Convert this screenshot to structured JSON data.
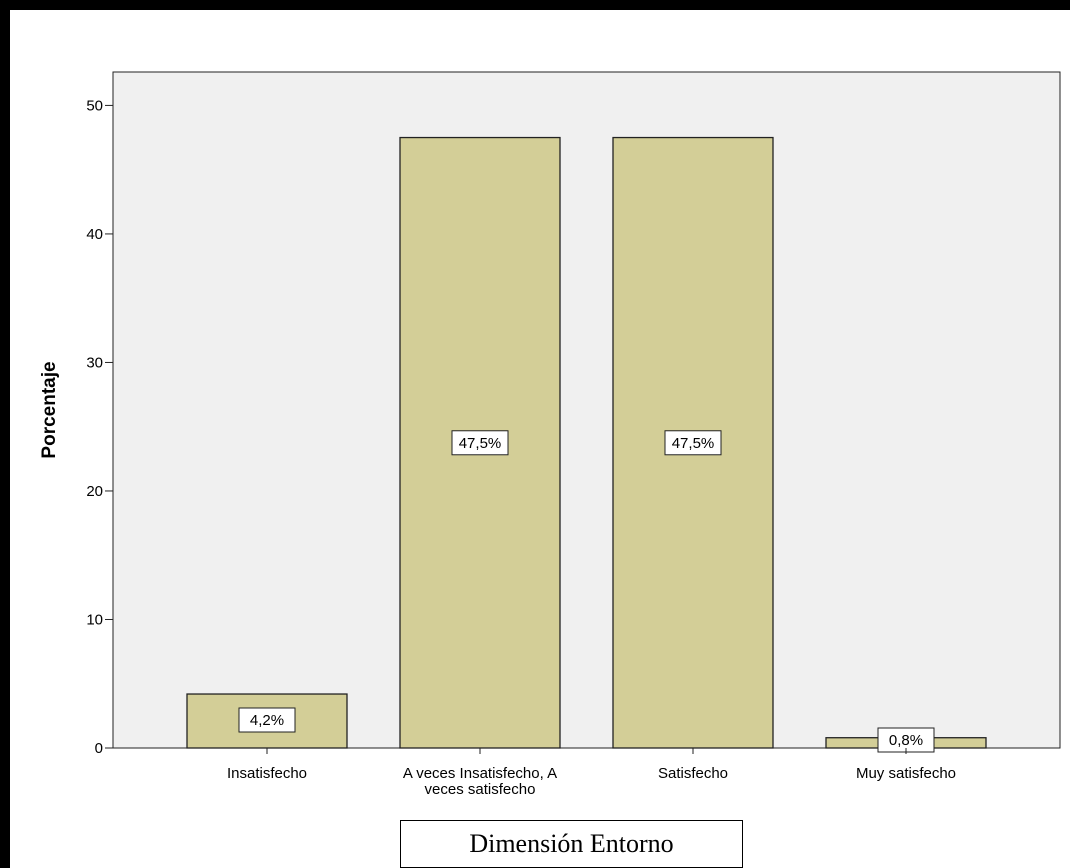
{
  "chart_data": {
    "type": "bar",
    "categories": [
      "Insatisfecho",
      "A veces Insatisfecho, A veces satisfecho",
      "Satisfecho",
      "Muy satisfecho"
    ],
    "category_label_lines": [
      [
        "Insatisfecho"
      ],
      [
        "A veces Insatisfecho, A",
        "veces satisfecho"
      ],
      [
        "Satisfecho"
      ],
      [
        "Muy satisfecho"
      ]
    ],
    "values": [
      4.2,
      47.5,
      47.5,
      0.8
    ],
    "data_labels": [
      "4,2%",
      "47,5%",
      "47,5%",
      "0,8%"
    ],
    "ylabel": "Porcentaje",
    "xlabel": "",
    "ylim": [
      0,
      52.6
    ],
    "yticks": [
      0,
      10,
      20,
      30,
      40,
      50
    ],
    "grid": false,
    "colors": {
      "bar_fill": "#d3ce97",
      "bar_stroke": "#222222",
      "plot_background": "#f0f0f0"
    }
  },
  "caption": "Dimensión Entorno"
}
